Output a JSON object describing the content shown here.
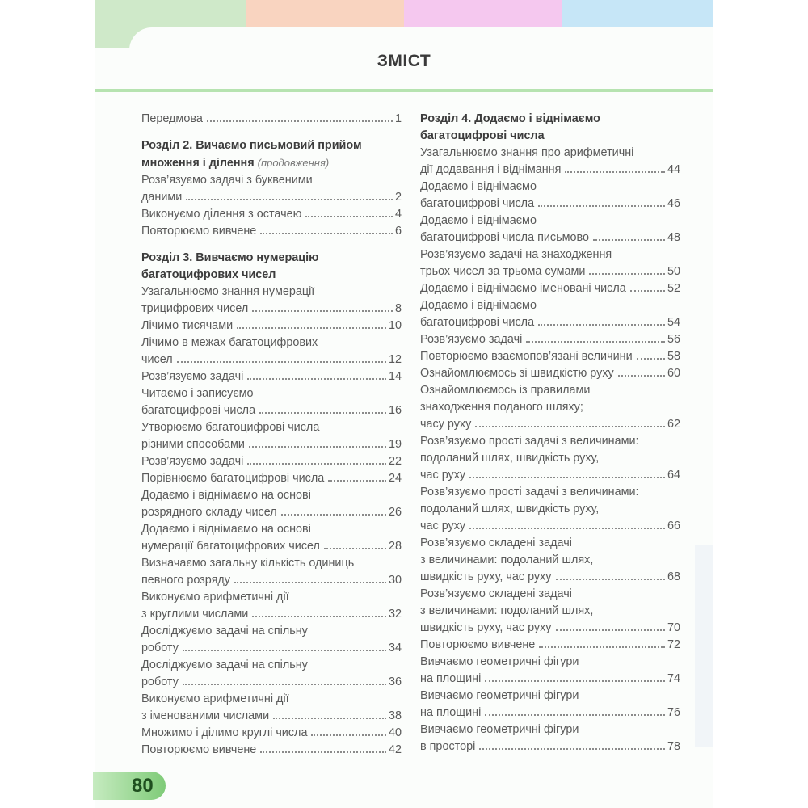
{
  "colors": {
    "band_green": "#cfe9c9",
    "band_peach": "#f9d4c0",
    "band_pink": "#f5c8ef",
    "band_blue": "#c6e6f7",
    "rule": "#b6e3b0",
    "page_badge": "#7fcb78"
  },
  "title": "ЗМІСТ",
  "page_number": "80",
  "left_column": [
    {
      "type": "entry",
      "lines": [
        "Передмова"
      ],
      "page": "1"
    },
    {
      "type": "section",
      "lines": [
        "Розділ 2. Вичаємо письмовий прийом",
        "множення і ділення"
      ],
      "note": "(продовження)"
    },
    {
      "type": "entry",
      "lines": [
        "Розв’язуємо задачі з буквеними",
        "даними"
      ],
      "page": "2"
    },
    {
      "type": "entry",
      "lines": [
        "Виконуємо ділення з остачею"
      ],
      "page": "4"
    },
    {
      "type": "entry",
      "lines": [
        "Повторюємо вивчене"
      ],
      "page": "6"
    },
    {
      "type": "section",
      "lines": [
        "Розділ 3. Вивчаємо нумерацію",
        "багатоцифрових чисел"
      ]
    },
    {
      "type": "entry",
      "lines": [
        "Узагальнюємо знання нумерації",
        "трицифрових чисел"
      ],
      "page": "8"
    },
    {
      "type": "entry",
      "lines": [
        "Лічимо тисячами"
      ],
      "page": "10"
    },
    {
      "type": "entry",
      "lines": [
        "Лічимо в межах багатоцифрових",
        "чисел"
      ],
      "page": "12"
    },
    {
      "type": "entry",
      "lines": [
        "Розв’язуємо задачі"
      ],
      "page": "14"
    },
    {
      "type": "entry",
      "lines": [
        "Читаємо і записуємо",
        "багатоцифрові числа"
      ],
      "page": "16"
    },
    {
      "type": "entry",
      "lines": [
        "Утворюємо багатоцифрові числа",
        "різними способами"
      ],
      "page": "19"
    },
    {
      "type": "entry",
      "lines": [
        "Розв’язуємо задачі"
      ],
      "page": "22"
    },
    {
      "type": "entry",
      "lines": [
        "Порівнюємо багатоцифрові числа"
      ],
      "page": "24"
    },
    {
      "type": "entry",
      "lines": [
        "Додаємо і віднімаємо на основі",
        "розрядного складу чисел"
      ],
      "page": "26"
    },
    {
      "type": "entry",
      "lines": [
        "Додаємо і віднімаємо на основі",
        "нумерації багатоцифрових чисел"
      ],
      "page": "28"
    },
    {
      "type": "entry",
      "lines": [
        "Визначаємо загальну кількість одиниць",
        "певного розряду"
      ],
      "page": "30"
    },
    {
      "type": "entry",
      "lines": [
        "Виконуємо арифметичні дії",
        "з круглими числами"
      ],
      "page": "32"
    },
    {
      "type": "entry",
      "lines": [
        "Досліджуємо задачі на спільну",
        "роботу"
      ],
      "page": "34"
    },
    {
      "type": "entry",
      "lines": [
        "Досліджуємо задачі на спільну",
        "роботу"
      ],
      "page": "36"
    },
    {
      "type": "entry",
      "lines": [
        "Виконуємо арифметичні дії",
        "з іменованими числами"
      ],
      "page": "38"
    },
    {
      "type": "entry",
      "lines": [
        "Множимо і ділимо круглі числа"
      ],
      "page": "40"
    },
    {
      "type": "entry",
      "lines": [
        "Повторюємо вивчене"
      ],
      "page": "42"
    }
  ],
  "right_column": [
    {
      "type": "section",
      "lines": [
        "Розділ 4. Додаємо і віднімаємо",
        "багатоцифрові числа"
      ]
    },
    {
      "type": "entry",
      "lines": [
        "Узагальнюємо знання про арифметичні",
        "дії додавання і віднімання"
      ],
      "page": "44"
    },
    {
      "type": "entry",
      "lines": [
        "Додаємо і віднімаємо",
        "багатоцифрові числа"
      ],
      "page": "46"
    },
    {
      "type": "entry",
      "lines": [
        "Додаємо і віднімаємо",
        "багатоцифрові числа письмово"
      ],
      "page": "48"
    },
    {
      "type": "entry",
      "lines": [
        "Розв’язуємо задачі на знаходження",
        "трьох чисел за трьома сумами"
      ],
      "page": "50"
    },
    {
      "type": "entry",
      "lines": [
        "Додаємо і віднімаємо іменовані числа"
      ],
      "page": "52"
    },
    {
      "type": "entry",
      "lines": [
        "Додаємо і віднімаємо",
        "багатоцифрові числа"
      ],
      "page": "54"
    },
    {
      "type": "entry",
      "lines": [
        "Розв’язуємо задачі"
      ],
      "page": "56"
    },
    {
      "type": "entry",
      "lines": [
        "Повторюємо взаємопов’язані величини"
      ],
      "page": "58"
    },
    {
      "type": "entry",
      "lines": [
        "Ознайомлюємось зі швидкістю руху"
      ],
      "page": "60"
    },
    {
      "type": "entry",
      "lines": [
        "Ознайомлюємось із правилами",
        "знаходження поданого шляху;",
        "часу руху"
      ],
      "page": "62"
    },
    {
      "type": "entry",
      "lines": [
        "Розв’язуємо прості задачі з величинами:",
        "подоланий шлях, швидкість руху,",
        "час руху"
      ],
      "page": "64"
    },
    {
      "type": "entry",
      "lines": [
        "Розв’язуємо прості задачі з величинами:",
        "подоланий шлях, швидкість руху,",
        "час руху"
      ],
      "page": "66"
    },
    {
      "type": "entry",
      "lines": [
        "Розв’язуємо складені задачі",
        "з величинами: подоланий шлях,",
        "швидкість руху, час руху"
      ],
      "page": "68"
    },
    {
      "type": "entry",
      "lines": [
        "Розв’язуємо складені задачі",
        "з величинами: подоланий шлях,",
        "швидкість руху, час руху"
      ],
      "page": "70"
    },
    {
      "type": "entry",
      "lines": [
        "Повторюємо вивчене"
      ],
      "page": "72"
    },
    {
      "type": "entry",
      "lines": [
        "Вивчаємо геометричні фігури",
        "на площині"
      ],
      "page": "74"
    },
    {
      "type": "entry",
      "lines": [
        "Вивчаємо геометричні фігури",
        "на площині"
      ],
      "page": "76"
    },
    {
      "type": "entry",
      "lines": [
        "Вивчаємо геометричні фігури",
        "в просторі"
      ],
      "page": "78"
    }
  ]
}
